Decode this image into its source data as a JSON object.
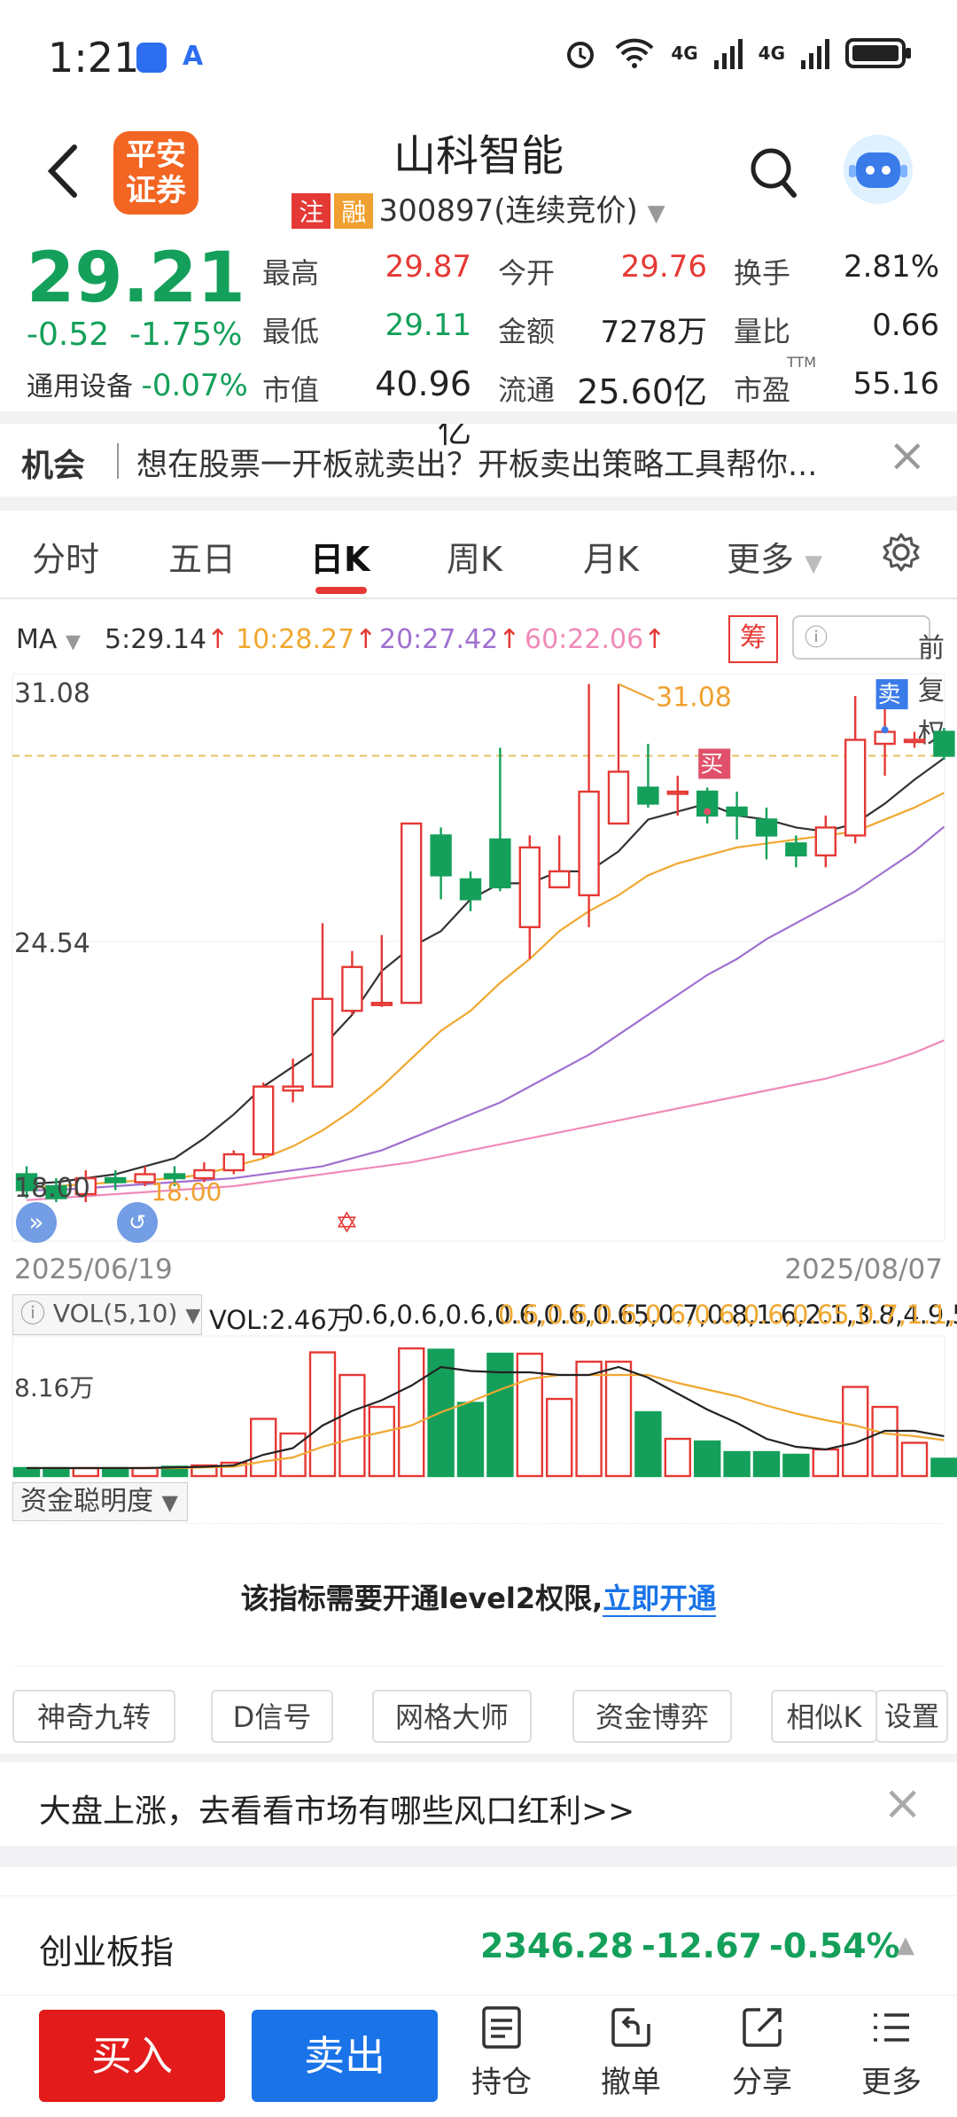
{
  "status": {
    "time": "1:21",
    "net1": "4G",
    "net2": "4G"
  },
  "header": {
    "logo_line1": "平安",
    "logo_line2": "证券",
    "title": "山科智能",
    "tag1": "注",
    "tag2": "融",
    "code": "300897",
    "status": "(连续竞价)"
  },
  "quote": {
    "price": "29.21",
    "change": "-0.52",
    "change_pct": "-1.75%",
    "sector": "通用设备",
    "sector_pct": "-0.07%",
    "high_label": "最高",
    "high": "29.87",
    "open_label": "今开",
    "open": "29.76",
    "turnover_label": "换手",
    "turnover": "2.81%",
    "low_label": "最低",
    "low": "29.11",
    "amount_label": "金额",
    "amount": "7278万",
    "volratio_label": "量比",
    "volratio": "0.66",
    "mcap_label": "市值",
    "mcap": "40.96亿",
    "float_label": "流通",
    "float": "25.60亿",
    "pe_label": "市盈",
    "pe_sup": "TTM",
    "pe": "55.16"
  },
  "opportunity": {
    "title": "机会",
    "text": "想在股票一开板就卖出？开板卖出策略工具帮你..."
  },
  "tabs": [
    "分时",
    "五日",
    "日K",
    "周K",
    "月K",
    "更多"
  ],
  "ma": {
    "label": "MA",
    "ma5": "5:29.14",
    "ma10": "10:28.27",
    "ma20": "20:27.42",
    "ma60": "60:22.06",
    "chou": "筹",
    "fq": "前复权"
  },
  "colors": {
    "up": "#e53935",
    "down": "#14a05a",
    "ma5": "#333333",
    "ma10": "#f0a830",
    "ma20": "#a070d0",
    "ma60": "#f08ab8"
  },
  "chart_data": {
    "type": "candlestick",
    "y_top_label": "31.08",
    "y_mid_label": "24.54",
    "y_bottom_label": "18.00",
    "max_label": "31.08",
    "min_label": "18.00",
    "buy_label": "买",
    "sell_label": "卖",
    "date_start": "2025/06/19",
    "date_end": "2025/08/07",
    "candles": [
      {
        "o": 18.7,
        "c": 18.3,
        "h": 18.9,
        "l": 18.1
      },
      {
        "o": 18.4,
        "c": 18.1,
        "h": 18.6,
        "l": 18.0
      },
      {
        "o": 18.2,
        "c": 18.6,
        "h": 18.8,
        "l": 18.0
      },
      {
        "o": 18.6,
        "c": 18.5,
        "h": 18.8,
        "l": 18.3
      },
      {
        "o": 18.5,
        "c": 18.7,
        "h": 18.9,
        "l": 18.4
      },
      {
        "o": 18.7,
        "c": 18.6,
        "h": 18.9,
        "l": 18.4
      },
      {
        "o": 18.6,
        "c": 18.8,
        "h": 19.0,
        "l": 18.5
      },
      {
        "o": 18.8,
        "c": 19.2,
        "h": 19.3,
        "l": 18.7
      },
      {
        "o": 19.2,
        "c": 20.9,
        "h": 21.0,
        "l": 19.1
      },
      {
        "o": 20.8,
        "c": 20.9,
        "h": 21.6,
        "l": 20.5
      },
      {
        "o": 20.9,
        "c": 23.1,
        "h": 25.0,
        "l": 20.9
      },
      {
        "o": 22.8,
        "c": 23.9,
        "h": 24.3,
        "l": 22.7
      },
      {
        "o": 23.0,
        "c": 23.0,
        "h": 24.7,
        "l": 22.9
      },
      {
        "o": 23.0,
        "c": 27.5,
        "h": 27.5,
        "l": 23.0
      },
      {
        "o": 27.2,
        "c": 26.2,
        "h": 27.4,
        "l": 25.6
      },
      {
        "o": 26.1,
        "c": 25.6,
        "h": 26.3,
        "l": 25.3
      },
      {
        "o": 27.1,
        "c": 25.9,
        "h": 29.4,
        "l": 25.8
      },
      {
        "o": 24.9,
        "c": 26.9,
        "h": 27.2,
        "l": 24.1
      },
      {
        "o": 25.9,
        "c": 26.3,
        "h": 27.2,
        "l": 25.9
      },
      {
        "o": 25.7,
        "c": 28.3,
        "h": 31.0,
        "l": 24.9
      },
      {
        "o": 27.5,
        "c": 28.8,
        "h": 31.0,
        "l": 27.5
      },
      {
        "o": 28.4,
        "c": 28.0,
        "h": 29.5,
        "l": 27.9
      },
      {
        "o": 28.3,
        "c": 28.3,
        "h": 28.7,
        "l": 27.7
      },
      {
        "o": 28.3,
        "c": 27.7,
        "h": 28.4,
        "l": 27.5
      },
      {
        "o": 27.9,
        "c": 27.7,
        "h": 28.3,
        "l": 27.1
      },
      {
        "o": 27.6,
        "c": 27.2,
        "h": 27.9,
        "l": 26.6
      },
      {
        "o": 27.0,
        "c": 26.7,
        "h": 27.2,
        "l": 26.4
      },
      {
        "o": 26.7,
        "c": 27.4,
        "h": 27.7,
        "l": 26.4
      },
      {
        "o": 27.2,
        "c": 29.6,
        "h": 30.7,
        "l": 27.0
      },
      {
        "o": 29.5,
        "c": 29.8,
        "h": 30.4,
        "l": 28.7
      },
      {
        "o": 29.6,
        "c": 29.6,
        "h": 29.8,
        "l": 29.4
      },
      {
        "o": 29.8,
        "c": 29.2,
        "h": 29.9,
        "l": 29.1
      }
    ],
    "ma5": [
      18.45,
      18.5,
      18.6,
      18.7,
      18.9,
      19.1,
      19.6,
      20.2,
      20.9,
      21.4,
      21.9,
      22.7,
      23.8,
      24.4,
      24.8,
      25.6,
      26.0,
      26.0,
      26.3,
      26.3,
      26.8,
      27.6,
      27.8,
      28.0,
      27.7,
      27.6,
      27.4,
      27.3,
      27.5,
      28.0,
      28.6,
      29.14
    ],
    "ma10": [
      18.35,
      18.4,
      18.45,
      18.5,
      18.55,
      18.6,
      18.7,
      18.9,
      19.1,
      19.4,
      19.8,
      20.3,
      20.9,
      21.6,
      22.3,
      22.8,
      23.5,
      24.1,
      24.8,
      25.3,
      25.7,
      26.2,
      26.5,
      26.7,
      26.9,
      27.0,
      27.1,
      27.2,
      27.3,
      27.6,
      27.9,
      28.27
    ],
    "ma20": [
      18.3,
      18.3,
      18.35,
      18.4,
      18.45,
      18.5,
      18.55,
      18.6,
      18.7,
      18.8,
      18.9,
      19.1,
      19.3,
      19.6,
      19.9,
      20.2,
      20.5,
      20.9,
      21.3,
      21.7,
      22.2,
      22.7,
      23.2,
      23.7,
      24.1,
      24.6,
      25.0,
      25.4,
      25.8,
      26.3,
      26.8,
      27.42
    ],
    "ma60": [
      18.05,
      18.1,
      18.15,
      18.2,
      18.25,
      18.3,
      18.35,
      18.4,
      18.5,
      18.6,
      18.7,
      18.8,
      18.9,
      19.0,
      19.15,
      19.3,
      19.45,
      19.6,
      19.75,
      19.9,
      20.05,
      20.2,
      20.35,
      20.5,
      20.65,
      20.8,
      20.95,
      21.1,
      21.3,
      21.5,
      21.75,
      22.06
    ]
  },
  "volume": {
    "btn": "VOL(5,10)",
    "vol": "VOL:2.46万",
    "ma5": [
      0.6,
      0.6,
      0.6,
      0.6,
      0.6,
      0.65,
      0.7,
      0.8,
      1.6,
      2.1,
      3.8,
      4.9,
      5.7,
      6.8,
      8.2,
      7.9,
      7.8,
      7.8,
      7.6,
      7.6,
      8.2,
      7.4,
      6.2,
      5.0,
      4.0,
      2.8,
      2.2,
      2.0,
      2.5,
      3.4,
      3.4,
      3.0
    ],
    "ma10": [
      0.6,
      0.6,
      0.6,
      0.6,
      0.6,
      0.6,
      0.65,
      0.7,
      1.1,
      1.4,
      2.2,
      2.8,
      3.3,
      3.8,
      4.8,
      5.6,
      6.5,
      7.3,
      7.6,
      7.6,
      7.6,
      7.6,
      7.0,
      6.5,
      6.0,
      5.3,
      4.7,
      4.2,
      3.8,
      3.2,
      3.0,
      2.7
    ],
    "axis": "8.16万",
    "bars": [
      0.6,
      0.6,
      0.6,
      0.6,
      0.6,
      0.7,
      0.8,
      1.0,
      4.3,
      3.2,
      9.3,
      7.6,
      5.2,
      9.6,
      9.5,
      5.5,
      9.2,
      9.2,
      5.8,
      8.6,
      8.6,
      4.8,
      2.8,
      2.6,
      1.8,
      1.8,
      1.6,
      2.0,
      6.7,
      5.2,
      2.5,
      1.3
    ]
  },
  "fund": {
    "btn": "资金聪明度",
    "msg": "该指标需要开通level2权限,",
    "link": "立即开通"
  },
  "chips": [
    "神奇九转",
    "D信号",
    "网格大师",
    "资金博弈",
    "相似K",
    "设置"
  ],
  "market_tip": "大盘上涨，去看看市场有哪些风口红利>>",
  "index": {
    "name": "创业板指",
    "value": "2346.28",
    "change": "-12.67",
    "pct": "-0.54%"
  },
  "bottom": {
    "buy": "买入",
    "sell": "卖出",
    "hold": "持仓",
    "cancel": "撤单",
    "share": "分享",
    "more": "更多"
  }
}
